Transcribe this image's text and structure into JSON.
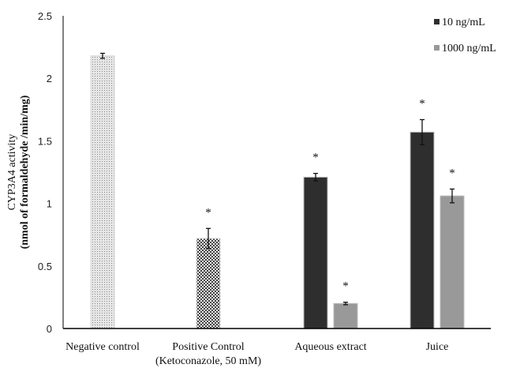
{
  "chart_data": {
    "type": "bar",
    "title": "",
    "ylabel": [
      "CYP3A4 activity",
      "(nmol of formaldehyde /min/mg)"
    ],
    "xlabel": "",
    "ylim": [
      0,
      2.5
    ],
    "yticks": [
      "0",
      "0.5",
      "1",
      "1.5",
      "2",
      "2.5"
    ],
    "grid": false,
    "legend_position": "top-right",
    "categories": [
      {
        "label": [
          "Negative control"
        ]
      },
      {
        "label": [
          "Positive Control",
          "(Ketoconazole, 50 mM)"
        ]
      },
      {
        "label": [
          "Aqueous extract"
        ]
      },
      {
        "label": [
          "Juice"
        ]
      }
    ],
    "control_bars": [
      {
        "category": 0,
        "value": 2.18,
        "error": 0.02,
        "significant": false,
        "pattern": "fine-dots",
        "color": "#bdbdbd"
      },
      {
        "category": 1,
        "value": 0.72,
        "error": 0.08,
        "significant": true,
        "pattern": "checker",
        "color": "#555555"
      }
    ],
    "series": [
      {
        "name": "10 ng/mL",
        "color": "#2e2e2e",
        "values": [
          null,
          null,
          1.21,
          1.57
        ],
        "errors": [
          null,
          null,
          0.03,
          0.1
        ],
        "significant": [
          false,
          false,
          true,
          true
        ]
      },
      {
        "name": "1000 ng/mL",
        "color": "#999999",
        "values": [
          null,
          null,
          0.2,
          1.06
        ],
        "errors": [
          null,
          null,
          0.01,
          0.055
        ],
        "significant": [
          false,
          false,
          true,
          true
        ]
      }
    ],
    "significance_marker": "*"
  }
}
